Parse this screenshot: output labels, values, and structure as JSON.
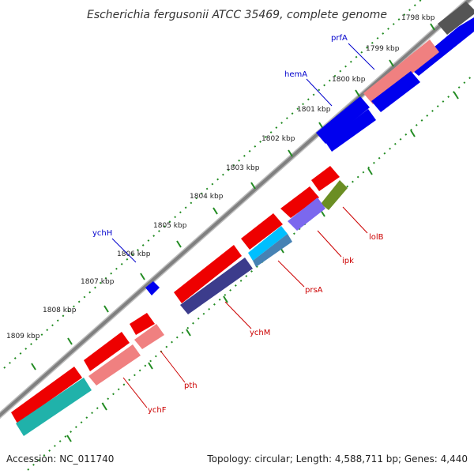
{
  "title": "Escherichia fergusonii ATCC 35469, complete genome",
  "footer": {
    "accession": "Accession: NC_011740",
    "summary": "Topology: circular; Length: 4,588,711 bp; Genes: 4,440"
  },
  "ticks": [
    "1798 kbp",
    "1799 kbp",
    "1800 kbp",
    "1801 kbp",
    "1802 kbp",
    "1803 kbp",
    "1804 kbp",
    "1805 kbp",
    "1806 kbp",
    "1807 kbp",
    "1808 kbp",
    "1809 kbp"
  ],
  "gene_labels": {
    "outer": [
      "prfA",
      "hemA",
      "ychH"
    ],
    "inner": [
      "lolB",
      "ipk",
      "prsA",
      "ychM",
      "pth",
      "ychF"
    ]
  },
  "colors": {
    "forward_strand": "#0000ee",
    "reverse_strand": "#ee0000",
    "pseudo_pink": "#f08080",
    "dark_gray": "#555555",
    "olive": "#6b8e23",
    "lavender": "#7b68ee",
    "navy_purple": "#3c3c8c",
    "steel_blue": "#4682b4",
    "light_blue": "#00bfff",
    "cyan": "#20b2aa",
    "backbone": "#808080",
    "tick_green": "#228b22",
    "label_blue": "#0000cc",
    "label_red": "#cc0000"
  }
}
